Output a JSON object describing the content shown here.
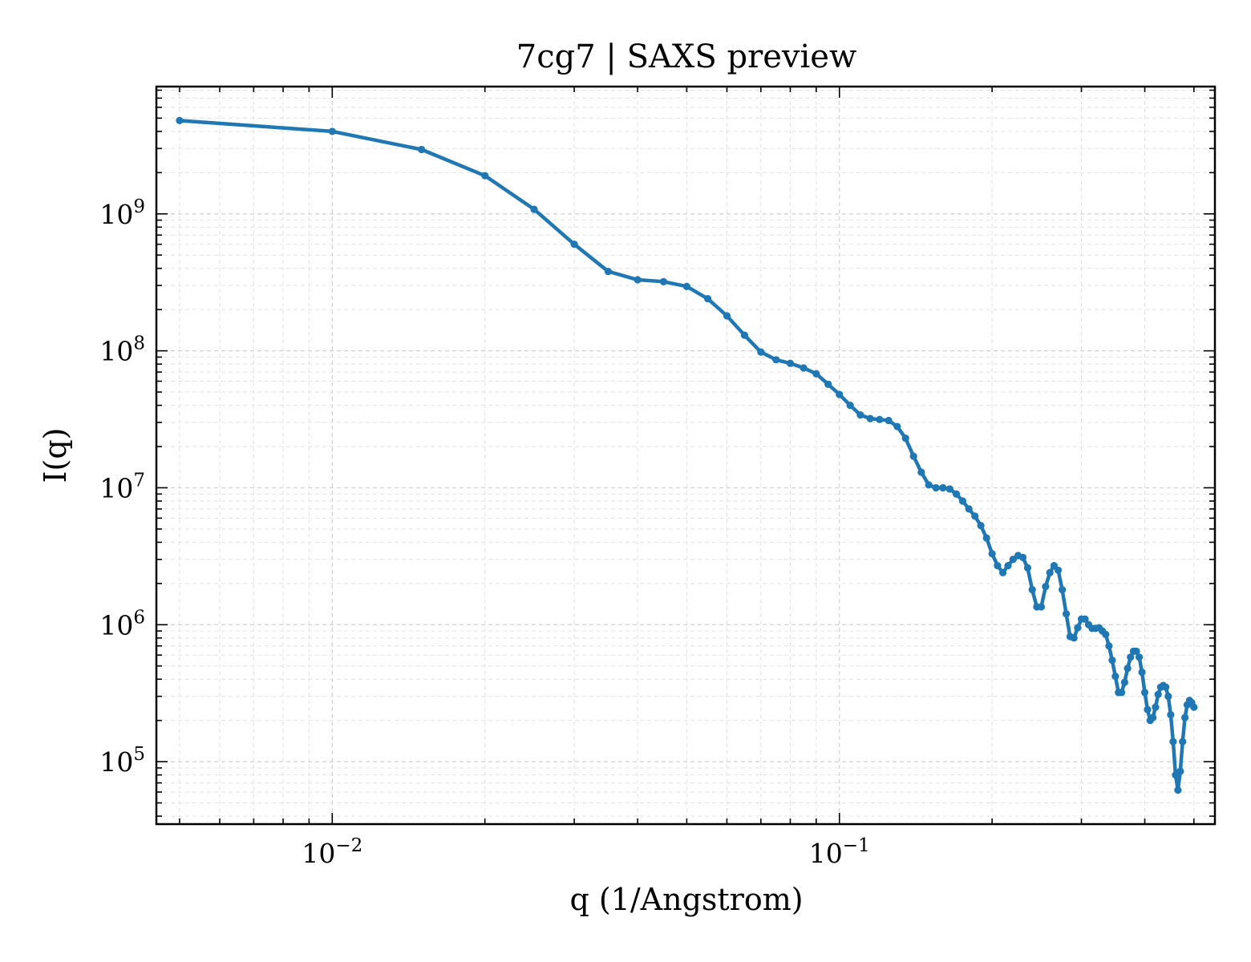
{
  "chart_data": {
    "type": "line",
    "title": "7cg7 | SAXS preview",
    "xlabel": "q (1/Angstrom)",
    "ylabel": "I(q)",
    "xscale": "log",
    "yscale": "log",
    "xlim": [
      0.0045,
      0.55
    ],
    "ylim": [
      35000,
      8500000000
    ],
    "grid": true,
    "line_color": "#1f77b4",
    "x_ticks": [
      {
        "base": "10",
        "exp": "−2",
        "value": 0.01
      },
      {
        "base": "10",
        "exp": "−1",
        "value": 0.1
      }
    ],
    "y_ticks": [
      {
        "base": "10",
        "exp": "5",
        "value": 100000
      },
      {
        "base": "10",
        "exp": "6",
        "value": 1000000
      },
      {
        "base": "10",
        "exp": "7",
        "value": 10000000
      },
      {
        "base": "10",
        "exp": "8",
        "value": 100000000
      },
      {
        "base": "10",
        "exp": "9",
        "value": 1000000000
      }
    ],
    "series": [
      {
        "x": [
          0.005,
          0.01,
          0.015,
          0.02,
          0.025,
          0.03,
          0.035,
          0.04,
          0.045,
          0.05,
          0.055,
          0.06,
          0.065,
          0.07,
          0.075,
          0.08,
          0.085,
          0.09,
          0.095,
          0.1,
          0.105,
          0.11,
          0.115,
          0.12,
          0.125,
          0.13,
          0.135,
          0.14,
          0.145,
          0.15,
          0.155,
          0.16,
          0.165,
          0.17,
          0.175,
          0.18,
          0.185,
          0.19,
          0.195,
          0.2,
          0.205,
          0.21,
          0.215,
          0.22,
          0.225,
          0.23,
          0.235,
          0.24,
          0.245,
          0.25,
          0.255,
          0.26,
          0.265,
          0.27,
          0.275,
          0.28,
          0.285,
          0.29,
          0.295,
          0.3,
          0.305,
          0.31,
          0.315,
          0.32,
          0.325,
          0.33,
          0.335,
          0.34,
          0.345,
          0.35,
          0.355,
          0.36,
          0.365,
          0.37,
          0.375,
          0.38,
          0.385,
          0.39,
          0.395,
          0.4,
          0.405,
          0.41,
          0.415,
          0.42,
          0.425,
          0.43,
          0.435,
          0.44,
          0.445,
          0.45,
          0.455,
          0.46,
          0.465,
          0.47,
          0.475,
          0.48,
          0.485,
          0.49,
          0.495,
          0.5
        ],
        "y": [
          4800000000,
          4000000000,
          2950000000,
          1900000000,
          1080000000,
          600000000,
          380000000,
          330000000,
          320000000,
          295000000,
          240000000,
          180000000,
          130000000,
          98000000,
          86000000,
          81000000,
          75000000,
          68000000,
          57000000,
          48000000,
          40000000,
          34000000,
          32000000,
          31500000,
          31000000,
          28000000,
          23000000,
          17000000,
          13000000,
          10500000,
          10000000,
          10000000,
          9800000,
          9000000,
          8000000,
          7000000,
          6200000,
          5300000,
          4300000,
          3300000,
          2700000,
          2400000,
          2700000,
          3000000,
          3200000,
          3100000,
          2600000,
          1800000,
          1350000,
          1350000,
          1900000,
          2400000,
          2700000,
          2500000,
          1800000,
          1200000,
          820000,
          800000,
          950000,
          1100000,
          1100000,
          1000000,
          940000,
          940000,
          950000,
          900000,
          850000,
          700000,
          550000,
          420000,
          320000,
          320000,
          380000,
          480000,
          580000,
          640000,
          640000,
          580000,
          450000,
          320000,
          240000,
          200000,
          210000,
          250000,
          310000,
          350000,
          360000,
          350000,
          300000,
          220000,
          140000,
          80000,
          62000,
          85000,
          140000,
          210000,
          260000,
          280000,
          270000,
          250000
        ]
      }
    ]
  }
}
